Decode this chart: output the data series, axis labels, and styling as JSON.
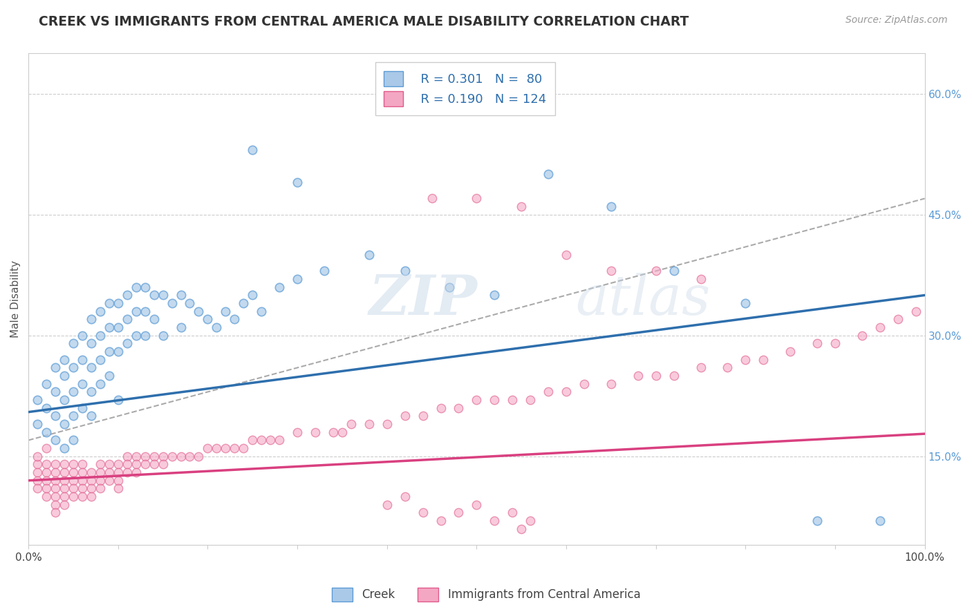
{
  "title": "CREEK VS IMMIGRANTS FROM CENTRAL AMERICA MALE DISABILITY CORRELATION CHART",
  "source_text": "Source: ZipAtlas.com",
  "ylabel": "Male Disability",
  "watermark_zip": "ZIP",
  "watermark_atlas": "atlas",
  "xlim": [
    0.0,
    1.0
  ],
  "ylim": [
    0.04,
    0.65
  ],
  "y_ticks_right": [
    0.15,
    0.3,
    0.45,
    0.6
  ],
  "y_tick_labels_right": [
    "15.0%",
    "30.0%",
    "45.0%",
    "60.0%"
  ],
  "creek_color": "#aac9e8",
  "creek_edge_color": "#5b9bd5",
  "immigrants_color": "#f4a7c3",
  "immigrants_edge_color": "#e05a8a",
  "creek_line_color": "#2e6fad",
  "immigrants_line_color": "#d94080",
  "dashed_line_color": "#aaaaaa",
  "background_color": "#ffffff",
  "grid_color": "#cccccc",
  "legend_R1": "R = 0.301",
  "legend_N1": "N =  80",
  "legend_R2": "R = 0.190",
  "legend_N2": "N = 124",
  "creek_intercept": 0.205,
  "creek_slope": 0.145,
  "immigrants_intercept": 0.12,
  "immigrants_slope": 0.058,
  "dashed_intercept": 0.17,
  "dashed_slope": 0.3,
  "creek_scatter_x": [
    0.01,
    0.01,
    0.02,
    0.02,
    0.02,
    0.03,
    0.03,
    0.03,
    0.03,
    0.04,
    0.04,
    0.04,
    0.04,
    0.04,
    0.05,
    0.05,
    0.05,
    0.05,
    0.05,
    0.06,
    0.06,
    0.06,
    0.06,
    0.07,
    0.07,
    0.07,
    0.07,
    0.07,
    0.08,
    0.08,
    0.08,
    0.08,
    0.09,
    0.09,
    0.09,
    0.09,
    0.1,
    0.1,
    0.1,
    0.1,
    0.11,
    0.11,
    0.11,
    0.12,
    0.12,
    0.12,
    0.13,
    0.13,
    0.13,
    0.14,
    0.14,
    0.15,
    0.15,
    0.16,
    0.17,
    0.17,
    0.18,
    0.19,
    0.2,
    0.21,
    0.22,
    0.23,
    0.24,
    0.25,
    0.26,
    0.28,
    0.3,
    0.33,
    0.38,
    0.42,
    0.47,
    0.52,
    0.58,
    0.65,
    0.72,
    0.8,
    0.88,
    0.95,
    0.25,
    0.3
  ],
  "creek_scatter_y": [
    0.22,
    0.19,
    0.24,
    0.21,
    0.18,
    0.26,
    0.23,
    0.2,
    0.17,
    0.27,
    0.25,
    0.22,
    0.19,
    0.16,
    0.29,
    0.26,
    0.23,
    0.2,
    0.17,
    0.3,
    0.27,
    0.24,
    0.21,
    0.32,
    0.29,
    0.26,
    0.23,
    0.2,
    0.33,
    0.3,
    0.27,
    0.24,
    0.34,
    0.31,
    0.28,
    0.25,
    0.34,
    0.31,
    0.28,
    0.22,
    0.35,
    0.32,
    0.29,
    0.36,
    0.33,
    0.3,
    0.36,
    0.33,
    0.3,
    0.35,
    0.32,
    0.35,
    0.3,
    0.34,
    0.35,
    0.31,
    0.34,
    0.33,
    0.32,
    0.31,
    0.33,
    0.32,
    0.34,
    0.35,
    0.33,
    0.36,
    0.37,
    0.38,
    0.4,
    0.38,
    0.36,
    0.35,
    0.5,
    0.46,
    0.38,
    0.34,
    0.07,
    0.07,
    0.53,
    0.49
  ],
  "immigrants_scatter_x": [
    0.01,
    0.01,
    0.01,
    0.01,
    0.01,
    0.02,
    0.02,
    0.02,
    0.02,
    0.02,
    0.02,
    0.03,
    0.03,
    0.03,
    0.03,
    0.03,
    0.03,
    0.03,
    0.04,
    0.04,
    0.04,
    0.04,
    0.04,
    0.04,
    0.05,
    0.05,
    0.05,
    0.05,
    0.05,
    0.06,
    0.06,
    0.06,
    0.06,
    0.06,
    0.07,
    0.07,
    0.07,
    0.07,
    0.08,
    0.08,
    0.08,
    0.08,
    0.09,
    0.09,
    0.09,
    0.1,
    0.1,
    0.1,
    0.1,
    0.11,
    0.11,
    0.11,
    0.12,
    0.12,
    0.12,
    0.13,
    0.13,
    0.14,
    0.14,
    0.15,
    0.15,
    0.16,
    0.17,
    0.18,
    0.19,
    0.2,
    0.21,
    0.22,
    0.23,
    0.24,
    0.25,
    0.26,
    0.27,
    0.28,
    0.3,
    0.32,
    0.34,
    0.35,
    0.36,
    0.38,
    0.4,
    0.42,
    0.44,
    0.46,
    0.48,
    0.5,
    0.52,
    0.54,
    0.56,
    0.58,
    0.6,
    0.62,
    0.65,
    0.68,
    0.7,
    0.72,
    0.75,
    0.78,
    0.8,
    0.82,
    0.85,
    0.88,
    0.9,
    0.93,
    0.95,
    0.97,
    0.99,
    0.4,
    0.42,
    0.44,
    0.46,
    0.48,
    0.5,
    0.52,
    0.54,
    0.56,
    0.45,
    0.5,
    0.55,
    0.6,
    0.65,
    0.7,
    0.75,
    0.55
  ],
  "immigrants_scatter_y": [
    0.14,
    0.13,
    0.12,
    0.11,
    0.15,
    0.14,
    0.13,
    0.12,
    0.11,
    0.1,
    0.16,
    0.14,
    0.13,
    0.12,
    0.11,
    0.1,
    0.09,
    0.08,
    0.14,
    0.13,
    0.12,
    0.11,
    0.1,
    0.09,
    0.14,
    0.13,
    0.12,
    0.11,
    0.1,
    0.14,
    0.13,
    0.12,
    0.11,
    0.1,
    0.13,
    0.12,
    0.11,
    0.1,
    0.14,
    0.13,
    0.12,
    0.11,
    0.14,
    0.13,
    0.12,
    0.14,
    0.13,
    0.12,
    0.11,
    0.15,
    0.14,
    0.13,
    0.15,
    0.14,
    0.13,
    0.15,
    0.14,
    0.15,
    0.14,
    0.15,
    0.14,
    0.15,
    0.15,
    0.15,
    0.15,
    0.16,
    0.16,
    0.16,
    0.16,
    0.16,
    0.17,
    0.17,
    0.17,
    0.17,
    0.18,
    0.18,
    0.18,
    0.18,
    0.19,
    0.19,
    0.19,
    0.2,
    0.2,
    0.21,
    0.21,
    0.22,
    0.22,
    0.22,
    0.22,
    0.23,
    0.23,
    0.24,
    0.24,
    0.25,
    0.25,
    0.25,
    0.26,
    0.26,
    0.27,
    0.27,
    0.28,
    0.29,
    0.29,
    0.3,
    0.31,
    0.32,
    0.33,
    0.09,
    0.1,
    0.08,
    0.07,
    0.08,
    0.09,
    0.07,
    0.08,
    0.07,
    0.47,
    0.47,
    0.46,
    0.4,
    0.38,
    0.38,
    0.37,
    0.06
  ]
}
